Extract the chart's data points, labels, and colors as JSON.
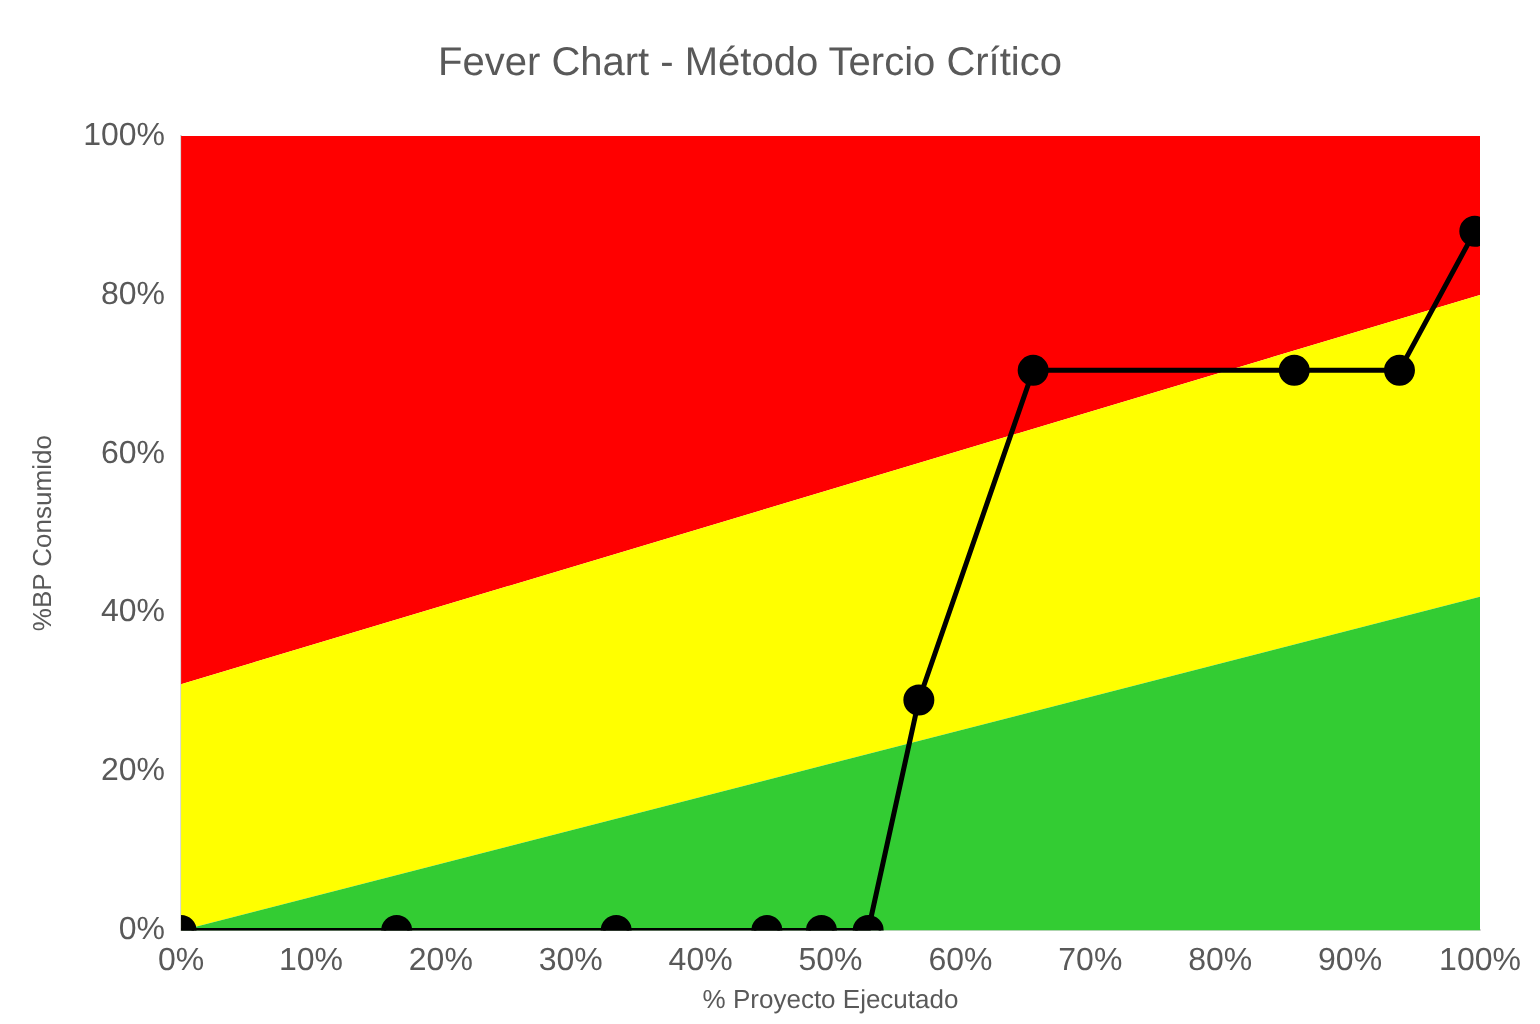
{
  "chart_data": {
    "type": "area",
    "title": "Fever Chart - Método Tercio Crítico",
    "xlabel": "% Proyecto Ejecutado",
    "ylabel": "%BP Consumido",
    "stacked": true,
    "x": [
      0,
      100
    ],
    "series": [
      {
        "color": "#33cc33",
        "values": [
          0,
          42
        ]
      },
      {
        "color": "#ffff00",
        "values": [
          31,
          38
        ]
      },
      {
        "color": "#ff0000",
        "values": [
          69,
          20
        ]
      },
      {
        "type": "line",
        "color": "#000000",
        "marker": "circle",
        "x": [
          0,
          16.6,
          33.5,
          45.1,
          49.3,
          52.9,
          56.8,
          65.6,
          85.7,
          93.8,
          99.6
        ],
        "values": [
          0,
          0,
          0,
          0,
          0,
          0,
          29,
          70.5,
          70.5,
          70.5,
          88
        ]
      }
    ],
    "xlim": [
      0,
      100
    ],
    "ylim": [
      0,
      100
    ],
    "xticks": [
      {
        "value": 0,
        "label": "0%"
      },
      {
        "value": 10,
        "label": "10%"
      },
      {
        "value": 20,
        "label": "20%"
      },
      {
        "value": 30,
        "label": "30%"
      },
      {
        "value": 40,
        "label": "40%"
      },
      {
        "value": 50,
        "label": "50%"
      },
      {
        "value": 60,
        "label": "60%"
      },
      {
        "value": 70,
        "label": "70%"
      },
      {
        "value": 80,
        "label": "80%"
      },
      {
        "value": 90,
        "label": "90%"
      },
      {
        "value": 100,
        "label": "100%"
      }
    ],
    "yticks": [
      {
        "value": 0,
        "label": "0%"
      },
      {
        "value": 20,
        "label": "20%"
      },
      {
        "value": 40,
        "label": "40%"
      },
      {
        "value": 60,
        "label": "60%"
      },
      {
        "value": 80,
        "label": "80%"
      },
      {
        "value": 100,
        "label": "100%"
      }
    ],
    "grid": false,
    "legend": false,
    "line_style": "solid"
  }
}
